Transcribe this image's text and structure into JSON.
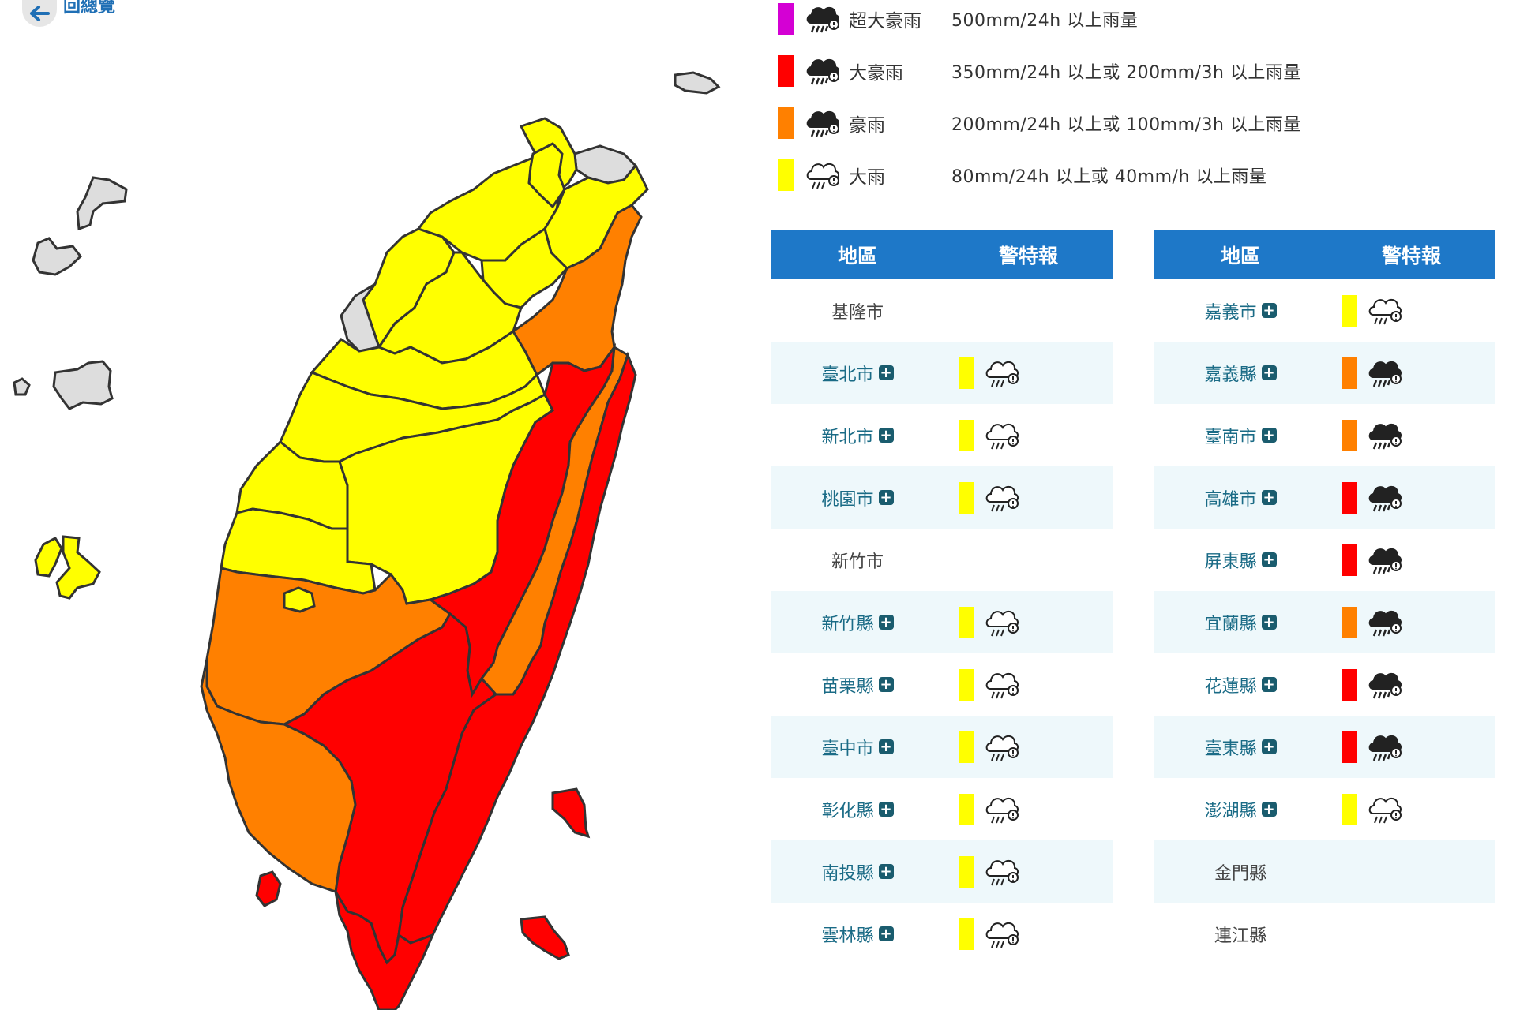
{
  "nav": {
    "back_label": "回總覽"
  },
  "legend": [
    {
      "color": "#d400d4",
      "icon": "torrential-rain-icon",
      "name": "超大豪雨",
      "desc": "500mm/24h 以上雨量"
    },
    {
      "color": "#ff0000",
      "icon": "extremely-heavy-rain-icon",
      "name": "大豪雨",
      "desc": "350mm/24h 以上或 200mm/3h 以上雨量"
    },
    {
      "color": "#ff8000",
      "icon": "very-heavy-rain-icon",
      "name": "豪雨",
      "desc": "200mm/24h 以上或 100mm/3h 以上雨量"
    },
    {
      "color": "#ffff00",
      "icon": "heavy-rain-icon",
      "name": "大雨",
      "desc": "80mm/24h 以上或 40mm/h 以上雨量"
    }
  ],
  "table_headers": {
    "area": "地區",
    "warning": "警特報"
  },
  "left_table": [
    {
      "area": "基隆市",
      "level": "none"
    },
    {
      "area": "臺北市",
      "level": "大雨"
    },
    {
      "area": "新北市",
      "level": "大雨"
    },
    {
      "area": "桃園市",
      "level": "大雨"
    },
    {
      "area": "新竹市",
      "level": "none"
    },
    {
      "area": "新竹縣",
      "level": "大雨"
    },
    {
      "area": "苗栗縣",
      "level": "大雨"
    },
    {
      "area": "臺中市",
      "level": "大雨"
    },
    {
      "area": "彰化縣",
      "level": "大雨"
    },
    {
      "area": "南投縣",
      "level": "大雨"
    },
    {
      "area": "雲林縣",
      "level": "大雨"
    }
  ],
  "right_table": [
    {
      "area": "嘉義市",
      "level": "大雨"
    },
    {
      "area": "嘉義縣",
      "level": "豪雨"
    },
    {
      "area": "臺南市",
      "level": "豪雨"
    },
    {
      "area": "高雄市",
      "level": "大豪雨"
    },
    {
      "area": "屏東縣",
      "level": "大豪雨"
    },
    {
      "area": "宜蘭縣",
      "level": "豪雨"
    },
    {
      "area": "花蓮縣",
      "level": "大豪雨"
    },
    {
      "area": "臺東縣",
      "level": "大豪雨"
    },
    {
      "area": "澎湖縣",
      "level": "大雨"
    },
    {
      "area": "金門縣",
      "level": "none"
    },
    {
      "area": "連江縣",
      "level": "none"
    }
  ],
  "level_colors": {
    "大雨": "#ffff00",
    "豪雨": "#ff8000",
    "大豪雨": "#ff0000",
    "超大豪雨": "#d400d4",
    "none": "#dddddd"
  },
  "map_regions": [
    {
      "name": "基隆市",
      "level": "none"
    },
    {
      "name": "臺北市",
      "level": "大雨"
    },
    {
      "name": "新北市",
      "level": "大雨"
    },
    {
      "name": "桃園市",
      "level": "大雨"
    },
    {
      "name": "新竹市",
      "level": "none"
    },
    {
      "name": "新竹縣",
      "level": "大雨"
    },
    {
      "name": "苗栗縣",
      "level": "大雨"
    },
    {
      "name": "臺中市",
      "level": "大雨"
    },
    {
      "name": "彰化縣",
      "level": "大雨"
    },
    {
      "name": "南投縣",
      "level": "大雨"
    },
    {
      "name": "雲林縣",
      "level": "大雨"
    },
    {
      "name": "嘉義縣",
      "level": "豪雨"
    },
    {
      "name": "嘉義市",
      "level": "大雨"
    },
    {
      "name": "臺南市",
      "level": "豪雨"
    },
    {
      "name": "高雄市",
      "level": "大豪雨"
    },
    {
      "name": "屏東縣",
      "level": "大豪雨"
    },
    {
      "name": "宜蘭縣",
      "level": "豪雨"
    },
    {
      "name": "花蓮縣",
      "level": "大豪雨"
    },
    {
      "name": "臺東縣",
      "level": "大豪雨"
    },
    {
      "name": "澎湖縣",
      "level": "大雨"
    },
    {
      "name": "金門縣",
      "level": "none"
    },
    {
      "name": "連江縣",
      "level": "none"
    }
  ]
}
